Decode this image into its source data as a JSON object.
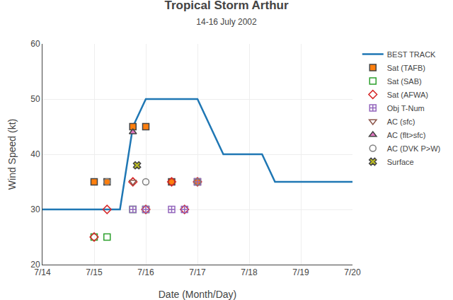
{
  "chart_data": {
    "type": "line",
    "title": "Tropical Storm Arthur",
    "subtitle": "14-16 July 2002",
    "xlabel": "Date (Month/Day)",
    "ylabel": "Wind Speed (kt)",
    "xlim": [
      14.0,
      20.0
    ],
    "xticks": [
      {
        "value": 14,
        "label": "7/14"
      },
      {
        "value": 15,
        "label": "7/15"
      },
      {
        "value": 16,
        "label": "7/16"
      },
      {
        "value": 17,
        "label": "7/17"
      },
      {
        "value": 18,
        "label": "7/18"
      },
      {
        "value": 19,
        "label": "7/19"
      },
      {
        "value": 20,
        "label": "7/20"
      }
    ],
    "ylim": [
      20,
      60
    ],
    "yticks": [
      20,
      30,
      40,
      50,
      60
    ],
    "grid": true,
    "legend": "upper right",
    "series": [
      {
        "name": "BEST TRACK",
        "type": "line",
        "line_style": "solid",
        "x": [
          14.0,
          14.5,
          15.0,
          15.5,
          15.75,
          16.0,
          16.5,
          17.0,
          17.5,
          18.0,
          18.25,
          18.5,
          19.0,
          19.5,
          20.0
        ],
        "values": [
          30,
          30,
          30,
          30,
          45,
          50,
          50,
          50,
          40,
          40,
          40,
          35,
          35,
          35,
          35
        ]
      },
      {
        "name": "Sat (TAFB)",
        "type": "scatter",
        "marker": "square",
        "x": [
          15.0,
          15.25,
          15.75,
          16.0,
          16.5,
          17.0
        ],
        "values": [
          35,
          35,
          45,
          45,
          35,
          35
        ]
      },
      {
        "name": "Sat (SAB)",
        "type": "scatter",
        "marker": "square-open",
        "x": [
          15.0,
          15.25,
          15.75,
          16.0
        ],
        "values": [
          25,
          25,
          30,
          30
        ]
      },
      {
        "name": "Sat (AFWA)",
        "type": "scatter",
        "marker": "diamond-open",
        "x": [
          15.0,
          15.25,
          15.75,
          16.0,
          16.5,
          16.75,
          17.0
        ],
        "values": [
          25,
          30,
          35,
          30,
          35,
          30,
          35
        ]
      },
      {
        "name": "Obj T-Num",
        "type": "scatter",
        "marker": "square-cross-open",
        "x": [
          15.75,
          16.0,
          16.5,
          16.75,
          17.0
        ],
        "values": [
          30,
          30,
          30,
          30,
          35
        ]
      },
      {
        "name": "AC (sfc)",
        "type": "scatter",
        "marker": "triangle-down-open",
        "x": [
          15.75
        ],
        "values": [
          35
        ]
      },
      {
        "name": "AC (flt>sfc)",
        "type": "scatter",
        "marker": "triangle-up",
        "x": [
          15.75
        ],
        "values": [
          44
        ]
      },
      {
        "name": "AC (DVK P>W)",
        "type": "scatter",
        "marker": "circle-open",
        "x": [
          15.25,
          16.0,
          17.0
        ],
        "values": [
          35,
          35,
          35
        ]
      },
      {
        "name": "Surface",
        "type": "scatter",
        "marker": "x",
        "x": [
          15.83
        ],
        "values": [
          38
        ]
      }
    ]
  }
}
